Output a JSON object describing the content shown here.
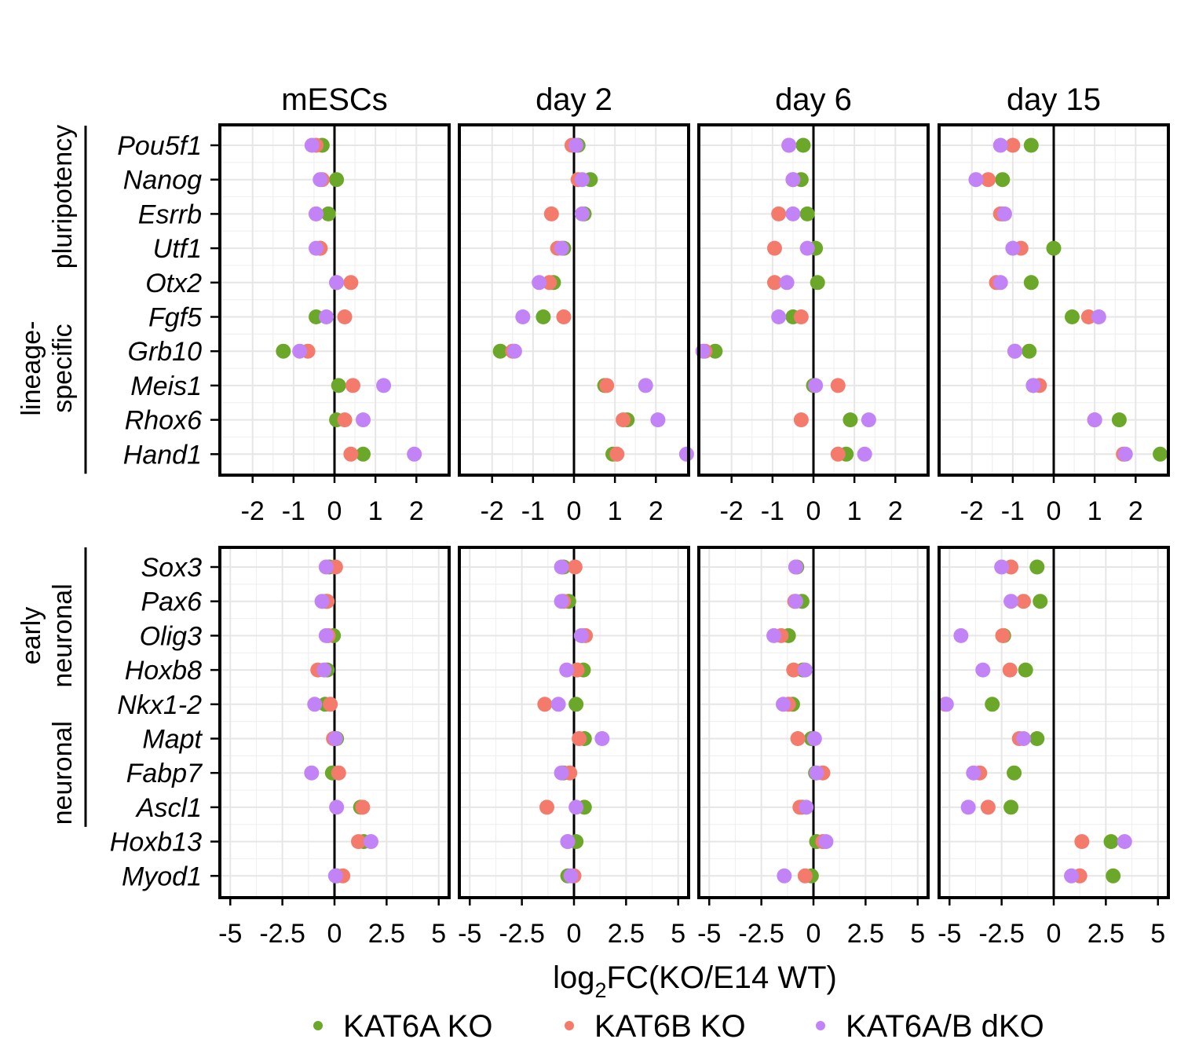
{
  "colors": {
    "KAT6A KO": "#6BA82A",
    "KAT6B KO": "#F47A6C",
    "KAT6A/B dKO": "#C183F5"
  },
  "chart_data": [
    {
      "type": "scatter",
      "row": "top",
      "facets": [
        "mESCs",
        "day 2",
        "day 6",
        "day 15"
      ],
      "x_ticks": [
        "-2",
        "-1",
        "0",
        "1",
        "2"
      ],
      "x_tick_values": [
        -2,
        -1,
        0,
        1,
        2
      ],
      "xlim": [
        -2.8,
        2.8
      ],
      "genes": [
        "Pou5f1",
        "Nanog",
        "Esrrb",
        "Utf1",
        "Otx2",
        "Fgf5",
        "Grb10",
        "Meis1",
        "Rhox6",
        "Hand1"
      ],
      "groups": [
        {
          "label_lines": [
            "pluripotency"
          ],
          "genes": [
            "Pou5f1",
            "Nanog",
            "Esrrb",
            "Utf1"
          ]
        },
        {
          "label_lines": [
            "lineage-",
            "specific"
          ],
          "genes": [
            "Otx2",
            "Fgf5",
            "Grb10",
            "Meis1",
            "Rhox6",
            "Hand1"
          ]
        }
      ],
      "series": [
        {
          "name": "KAT6A KO",
          "values": [
            [
              -0.3,
              0.05,
              -0.15,
              -0.35,
              0.05,
              -0.45,
              -1.25,
              0.1,
              0.05,
              0.7
            ],
            [
              0.1,
              0.4,
              0.25,
              -0.25,
              -0.5,
              -0.75,
              -1.8,
              0.75,
              1.3,
              0.95
            ],
            [
              -0.25,
              -0.3,
              -0.15,
              0.05,
              0.1,
              -0.5,
              -2.4,
              0.0,
              0.9,
              0.8
            ],
            [
              -0.55,
              -1.25,
              -1.25,
              0.0,
              -0.55,
              0.45,
              -0.6,
              -0.5,
              1.6,
              2.6
            ]
          ]
        },
        {
          "name": "KAT6B KO",
          "values": [
            [
              -0.45,
              -0.3,
              -0.45,
              -0.35,
              0.4,
              0.25,
              -0.65,
              0.45,
              0.25,
              0.4
            ],
            [
              -0.05,
              0.1,
              -0.55,
              -0.4,
              -0.6,
              -0.25,
              -1.5,
              0.8,
              1.2,
              1.05
            ],
            [
              -0.6,
              -0.5,
              -0.85,
              -0.95,
              -0.95,
              -0.3,
              -2.65,
              0.6,
              -0.3,
              0.6
            ],
            [
              -1.0,
              -1.6,
              -1.3,
              -0.8,
              -1.4,
              0.85,
              -0.95,
              -0.35,
              1.0,
              1.7
            ]
          ]
        },
        {
          "name": "KAT6A/B dKO",
          "values": [
            [
              -0.55,
              -0.35,
              -0.45,
              -0.45,
              0.05,
              -0.2,
              -0.85,
              1.2,
              0.7,
              1.95
            ],
            [
              0.05,
              0.2,
              0.2,
              -0.3,
              -0.85,
              -1.25,
              -1.45,
              1.75,
              2.05,
              2.75
            ],
            [
              -0.6,
              -0.5,
              -0.5,
              -0.15,
              -0.65,
              -0.85,
              -2.7,
              0.05,
              1.35,
              1.25
            ],
            [
              -1.3,
              -1.9,
              -1.2,
              -1.0,
              -1.3,
              1.1,
              -0.95,
              -0.5,
              1.0,
              1.75
            ]
          ]
        }
      ]
    },
    {
      "type": "scatter",
      "row": "bottom",
      "facets": [
        "mESCs",
        "day 2",
        "day 6",
        "day 15"
      ],
      "x_ticks": [
        "-5",
        "-2.5",
        "0",
        "2.5",
        "5"
      ],
      "x_tick_values": [
        -5,
        -2.5,
        0,
        2.5,
        5
      ],
      "xlim": [
        -5.5,
        5.5
      ],
      "genes": [
        "Sox3",
        "Pax6",
        "Olig3",
        "Hoxb8",
        "Nkx1-2",
        "Mapt",
        "Fabp7",
        "Ascl1",
        "Hoxb13",
        "Myod1"
      ],
      "groups": [
        {
          "label_lines": [
            "early",
            "neuronal"
          ],
          "genes": [
            "Sox3",
            "Pax6",
            "Olig3",
            "Hoxb8",
            "Nkx1-2"
          ]
        },
        {
          "label_lines": [
            "neuronal"
          ],
          "genes": [
            "Mapt",
            "Fabp7",
            "Ascl1"
          ]
        }
      ],
      "series": [
        {
          "name": "KAT6A KO",
          "values": [
            [
              -0.25,
              -0.4,
              -0.05,
              -0.35,
              -0.45,
              0.1,
              -0.1,
              1.25,
              1.4,
              0.1
            ],
            [
              -0.5,
              -0.25,
              0.4,
              0.45,
              0.1,
              0.5,
              -0.5,
              0.5,
              0.1,
              -0.3
            ],
            [
              -0.8,
              -0.55,
              -1.2,
              -0.5,
              -1.0,
              -0.1,
              0.1,
              -0.55,
              0.15,
              -0.1
            ],
            [
              -0.8,
              -0.65,
              -2.4,
              -1.35,
              -2.95,
              -0.8,
              -1.9,
              -2.05,
              2.75,
              2.85
            ]
          ]
        },
        {
          "name": "KAT6B KO",
          "values": [
            [
              0.05,
              -0.35,
              -0.3,
              -0.8,
              -0.2,
              -0.05,
              0.2,
              1.35,
              1.15,
              0.4
            ],
            [
              0.05,
              -0.5,
              0.55,
              0.15,
              -1.4,
              0.25,
              -0.2,
              -1.3,
              -0.3,
              0.0
            ],
            [
              -0.85,
              -0.9,
              -1.55,
              -0.95,
              -1.2,
              -0.75,
              0.45,
              -0.65,
              0.45,
              -0.4
            ],
            [
              -2.05,
              -1.45,
              -2.45,
              -2.1,
              -5.2,
              -1.65,
              -3.55,
              -3.15,
              1.35,
              1.25
            ]
          ]
        },
        {
          "name": "KAT6A/B dKO",
          "values": [
            [
              -0.4,
              -0.6,
              -0.4,
              -0.5,
              -0.95,
              0.05,
              -1.1,
              0.1,
              1.75,
              0.05
            ],
            [
              -0.6,
              -0.6,
              0.35,
              -0.35,
              -0.75,
              1.35,
              -0.6,
              0.1,
              -0.3,
              -0.15
            ],
            [
              -0.85,
              -0.85,
              -1.9,
              -0.4,
              -1.45,
              0.05,
              0.15,
              -0.35,
              0.6,
              -1.4
            ],
            [
              -2.5,
              -2.05,
              -4.45,
              -3.4,
              -5.15,
              -1.45,
              -3.85,
              -4.1,
              3.4,
              0.85
            ]
          ]
        }
      ]
    }
  ],
  "x_axis_title": {
    "prefix": "log",
    "subscript": "2",
    "suffix": "FC(KO/E14 WT)"
  },
  "legend": [
    {
      "label": "KAT6A KO",
      "color": "#6BA82A"
    },
    {
      "label": "KAT6B KO",
      "color": "#F47A6C"
    },
    {
      "label": "KAT6A/B dKO",
      "color": "#C183F5"
    }
  ]
}
